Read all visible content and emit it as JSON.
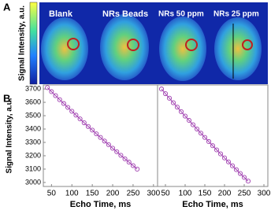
{
  "panel_labels": [
    "A",
    "B"
  ],
  "panel_a": {
    "colorbar_label": "Signal Intensity, a.u.",
    "image_labels": [
      "Blank",
      "NRs Beads",
      "NRs 50 ppm",
      "NRs 25 ppm"
    ]
  },
  "chart_data": [
    {
      "type": "line",
      "y_label": "Signal Intensity, a.u.",
      "x_label": "Echo Time, ms",
      "xlim": [
        30,
        310
      ],
      "xticks": [
        50,
        100,
        150,
        200,
        250,
        300
      ],
      "ylim": [
        2970,
        3730
      ],
      "yticks": [
        3000,
        3100,
        3200,
        3300,
        3400,
        3500,
        3600,
        3700
      ],
      "series": [
        {
          "color": "#a040b0",
          "x": [
            40,
            50,
            60,
            70,
            80,
            90,
            100,
            110,
            120,
            130,
            140,
            150,
            160,
            170,
            180,
            190,
            200,
            210,
            220,
            230,
            240,
            250,
            260
          ],
          "values": [
            3710,
            3680,
            3650,
            3620,
            3591,
            3562,
            3533,
            3504,
            3476,
            3447,
            3419,
            3392,
            3364,
            3337,
            3310,
            3283,
            3256,
            3230,
            3203,
            3177,
            3152,
            3126,
            3100
          ]
        }
      ]
    },
    {
      "type": "line",
      "x_label": "Echo Time, ms",
      "xlim": [
        30,
        310
      ],
      "xticks": [
        50,
        100,
        150,
        200,
        250,
        300
      ],
      "ylim": [
        2970,
        3730
      ],
      "series": [
        {
          "color": "#a040b0",
          "x": [
            40,
            50,
            60,
            70,
            80,
            90,
            100,
            110,
            120,
            130,
            140,
            150,
            160,
            170,
            180,
            190,
            200,
            210,
            220,
            230,
            240,
            250,
            260
          ],
          "values": [
            3700,
            3665,
            3631,
            3597,
            3564,
            3530,
            3497,
            3465,
            3432,
            3400,
            3369,
            3337,
            3306,
            3275,
            3244,
            3214,
            3184,
            3154,
            3125,
            3096,
            3067,
            3038,
            3010
          ]
        }
      ]
    }
  ]
}
